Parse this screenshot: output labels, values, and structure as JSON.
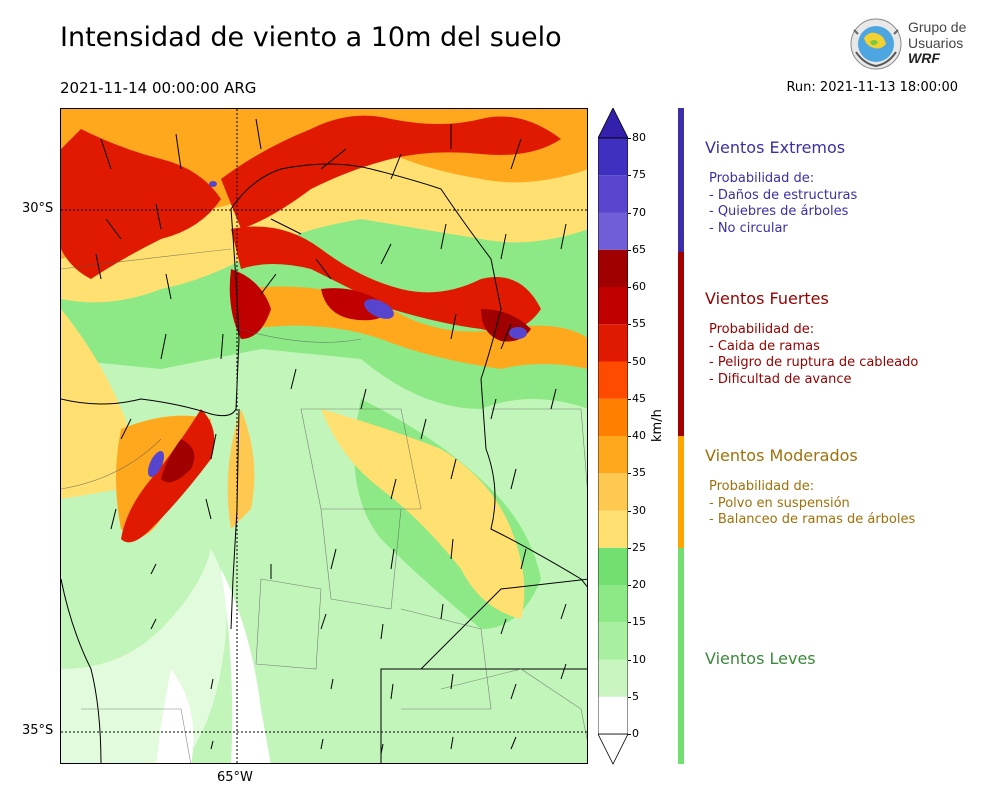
{
  "header": {
    "title": "Intensidad de viento a 10m del suelo",
    "valid_time": "2021-11-14 00:00:00 ARG",
    "run_time": "Run: 2021-11-13 18:00:00"
  },
  "logo": {
    "line1": "Grupo de",
    "line2": "Usuarios",
    "line3": "WRF",
    "icon": "globe-icon"
  },
  "map": {
    "lat_labels": [
      "30°S",
      "35°S"
    ],
    "lon_labels": [
      "65°W"
    ],
    "gridlines": "dotted"
  },
  "colorbar": {
    "unit": "km/h",
    "ticks": [
      "0",
      "5",
      "10",
      "15",
      "20",
      "25",
      "30",
      "35",
      "40",
      "45",
      "50",
      "55",
      "60",
      "65",
      "70",
      "75",
      "80"
    ],
    "colors": [
      "#ffffff",
      "#c8f5c0",
      "#a8f0a0",
      "#8ce986",
      "#72e070",
      "#ffe070",
      "#ffc850",
      "#ffa81e",
      "#ff7f00",
      "#ff4a00",
      "#e01a00",
      "#c00000",
      "#a00000",
      "#6f5ed8",
      "#5746cd",
      "#4030c0",
      "#3320ad"
    ],
    "extend": "both"
  },
  "categories": [
    {
      "title": "Vientos Extremos",
      "color": "#3a2fa8",
      "lines": [
        "Probabilidad de:",
        "- Daños de estructuras",
        "- Quiebres de árboles",
        "- No circular"
      ]
    },
    {
      "title": "Vientos Fuertes",
      "color": "#960000",
      "lines": [
        "Probabilidad de:",
        "- Caida de ramas",
        "- Peligro de ruptura de cableado",
        "- Dificultad de avance"
      ]
    },
    {
      "title": "Vientos Moderados",
      "color": "#a0700a",
      "lines": [
        "Probabilidad de:",
        "- Polvo en suspensión",
        "- Balanceo de ramas de árboles"
      ]
    },
    {
      "title": "Vientos Leves",
      "color": "#3a8a3a",
      "lines": []
    }
  ],
  "category_bar_colors": [
    "#3a2fa8",
    "#a00000",
    "#ffa500",
    "#72e070"
  ]
}
